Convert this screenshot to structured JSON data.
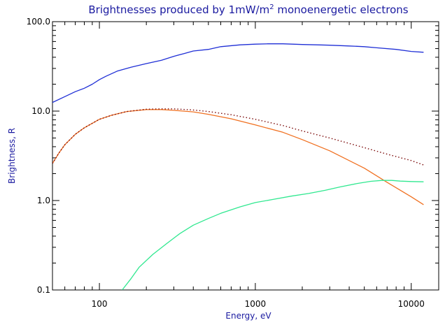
{
  "chart_data": {
    "type": "line",
    "title": "Brightnesses produced by 1mW/m",
    "title_sup": "2",
    "title_tail": " monoenergetic electrons",
    "xlabel": "Energy, eV",
    "ylabel": "Brightness, R",
    "x_scale": "log",
    "y_scale": "log",
    "xlim": [
      50,
      15000
    ],
    "ylim": [
      0.1,
      100
    ],
    "x_tick_values": [
      100,
      1000,
      10000
    ],
    "x_tick_labels": [
      "100",
      "1000",
      "10000"
    ],
    "y_tick_values": [
      0.1,
      1,
      10,
      100
    ],
    "y_tick_labels": [
      "0.1",
      "1.0",
      "10.0",
      "100.0"
    ],
    "grid": false,
    "series": [
      {
        "color": "#1f2fd6",
        "style": "solid",
        "x": [
          50,
          60,
          70,
          80,
          90,
          100,
          110,
          130,
          160,
          200,
          250,
          300,
          350,
          400,
          500,
          600,
          800,
          1000,
          1200,
          1500,
          2000,
          2500,
          3000,
          4000,
          5000,
          6000,
          8000,
          10000,
          12000
        ],
        "y": [
          12.5,
          14.5,
          16.5,
          18.0,
          20.0,
          22.5,
          24.5,
          28.0,
          31.0,
          34.0,
          37.0,
          41.0,
          44.0,
          47.0,
          49.0,
          52.5,
          55.0,
          56.0,
          56.5,
          56.5,
          55.5,
          55.0,
          54.5,
          53.5,
          52.5,
          51.0,
          49.0,
          46.5,
          45.5
        ]
      },
      {
        "color": "#f07020",
        "style": "solid",
        "x": [
          50,
          55,
          60,
          70,
          80,
          100,
          120,
          150,
          200,
          250,
          300,
          400,
          500,
          700,
          1000,
          1500,
          2000,
          3000,
          5000,
          7000,
          10000,
          12000
        ],
        "y": [
          2.6,
          3.4,
          4.2,
          5.5,
          6.5,
          8.1,
          9.0,
          9.9,
          10.4,
          10.4,
          10.2,
          9.8,
          9.2,
          8.2,
          7.0,
          5.8,
          4.8,
          3.6,
          2.3,
          1.6,
          1.1,
          0.9
        ]
      },
      {
        "color": "#7a0808",
        "style": "dotted",
        "x": [
          50,
          55,
          60,
          70,
          80,
          100,
          120,
          150,
          200,
          250,
          300,
          400,
          500,
          700,
          1000,
          1500,
          2000,
          3000,
          5000,
          7000,
          10000,
          12000
        ],
        "y": [
          2.6,
          3.4,
          4.2,
          5.5,
          6.5,
          8.1,
          9.0,
          9.9,
          10.5,
          10.6,
          10.6,
          10.3,
          9.9,
          9.1,
          8.1,
          6.9,
          6.0,
          5.0,
          3.9,
          3.3,
          2.8,
          2.5
        ]
      },
      {
        "color": "#30e890",
        "style": "solid",
        "x": [
          140,
          160,
          180,
          220,
          270,
          330,
          400,
          500,
          600,
          800,
          1000,
          1300,
          1700,
          2200,
          2800,
          3500,
          4500,
          5500,
          6500,
          7500,
          8500,
          10000,
          12000
        ],
        "y": [
          0.1,
          0.135,
          0.18,
          0.25,
          0.33,
          0.43,
          0.53,
          0.63,
          0.72,
          0.85,
          0.95,
          1.03,
          1.12,
          1.2,
          1.3,
          1.42,
          1.55,
          1.64,
          1.68,
          1.68,
          1.65,
          1.63,
          1.62
        ]
      }
    ]
  }
}
